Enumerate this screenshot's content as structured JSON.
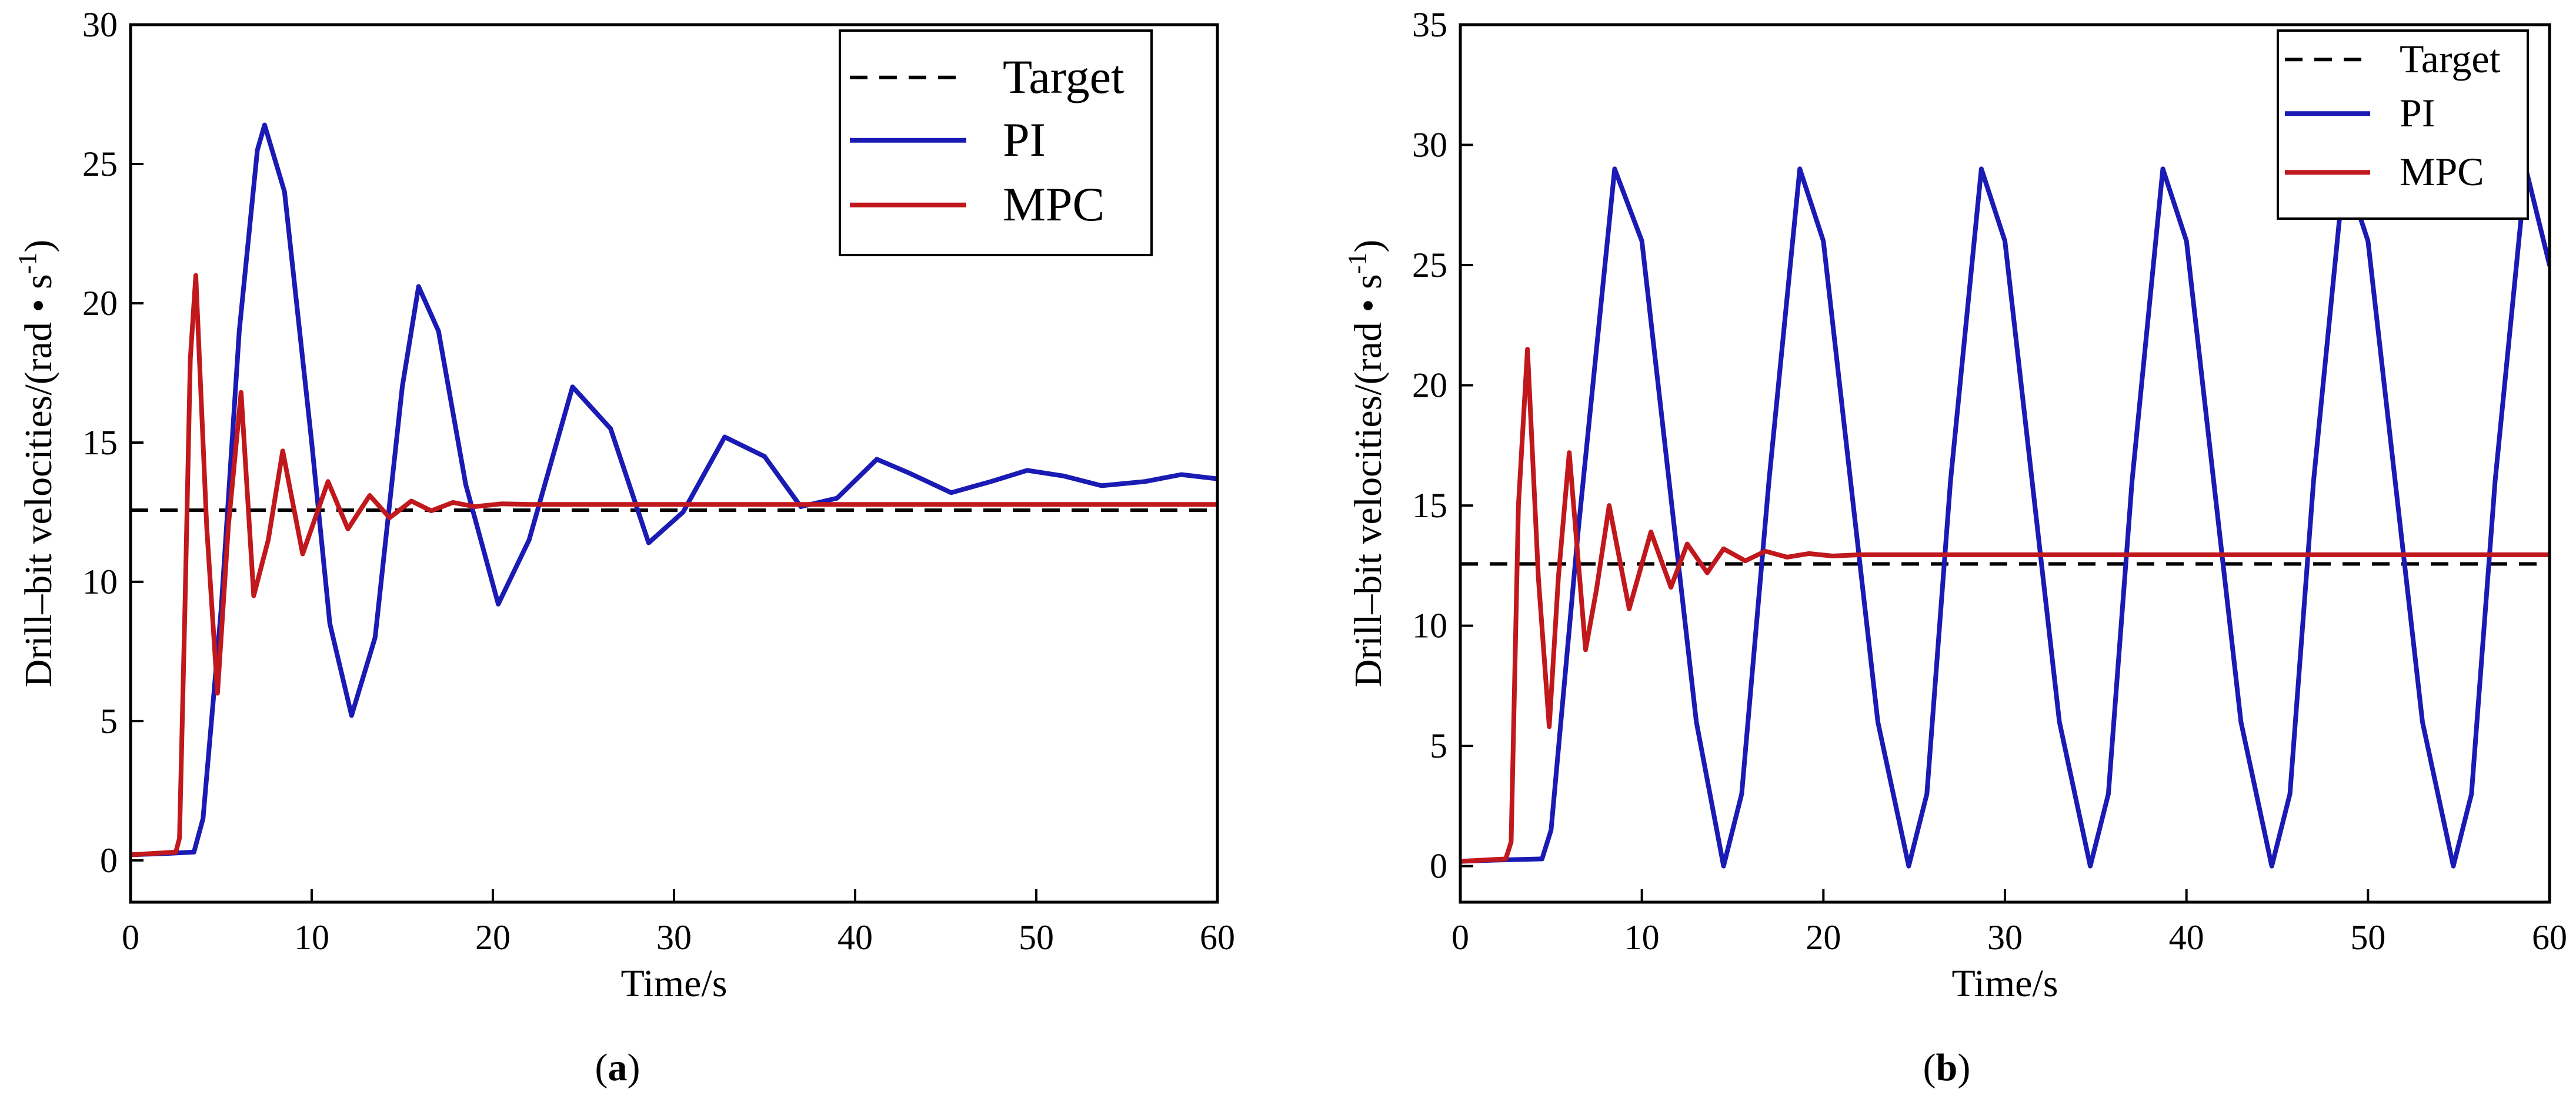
{
  "chart_data": [
    {
      "type": "line",
      "panel_label": "a",
      "xlabel": "Time/s",
      "ylabel_main": "Drill–bit velocities/(rad • s",
      "ylabel_sup": "-1",
      "ylabel_close": ")",
      "xlim": [
        0,
        60
      ],
      "ylim": [
        -1.5,
        30
      ],
      "xticks": [
        0,
        10,
        20,
        30,
        40,
        50,
        60
      ],
      "yticks": [
        0,
        5,
        10,
        15,
        20,
        25,
        30
      ],
      "legend_position": "top-right",
      "series": [
        {
          "name": "Target",
          "style": "dashed",
          "color": "#000000",
          "x": [
            0,
            60
          ],
          "y": [
            12.57,
            12.57
          ]
        },
        {
          "name": "PI",
          "style": "solid",
          "color": "#1a1ab4",
          "x": [
            0,
            2,
            3.5,
            4.0,
            5.0,
            6.0,
            7.0,
            7.4,
            8.5,
            10.0,
            11.0,
            12.2,
            13.5,
            15.0,
            15.9,
            17.0,
            18.5,
            20.3,
            22.0,
            24.4,
            26.5,
            28.6,
            30.5,
            32.8,
            35.0,
            37.0,
            39.0,
            41.2,
            43.0,
            45.3,
            47.5,
            49.5,
            51.5,
            53.6,
            56.0,
            58.0,
            60.0
          ],
          "y": [
            0.2,
            0.25,
            0.3,
            1.5,
            9.0,
            19.0,
            25.5,
            26.4,
            24.0,
            15.0,
            8.5,
            5.2,
            8.0,
            17.0,
            20.6,
            19.0,
            13.5,
            9.2,
            11.5,
            17.0,
            15.5,
            11.4,
            12.5,
            15.2,
            14.5,
            12.7,
            13.0,
            14.4,
            13.9,
            13.2,
            13.6,
            14.0,
            13.8,
            13.45,
            13.6,
            13.85,
            13.7
          ]
        },
        {
          "name": "MPC",
          "style": "solid",
          "color": "#c0181c",
          "x": [
            0,
            2.5,
            2.7,
            3.0,
            3.3,
            3.6,
            4.2,
            4.8,
            5.4,
            6.1,
            6.8,
            7.6,
            8.4,
            9.5,
            10.9,
            12.0,
            13.2,
            14.3,
            15.5,
            16.6,
            17.8,
            19.0,
            20.5,
            22.0,
            60
          ],
          "y": [
            0.2,
            0.3,
            0.8,
            9.0,
            18.0,
            21.0,
            12.0,
            6.0,
            12.0,
            16.8,
            9.5,
            11.5,
            14.7,
            11.0,
            13.6,
            11.9,
            13.1,
            12.3,
            12.9,
            12.55,
            12.85,
            12.7,
            12.8,
            12.78,
            12.78
          ]
        }
      ]
    },
    {
      "type": "line",
      "panel_label": "b",
      "xlabel": "Time/s",
      "ylabel_main": "Drill–bit velocities/(rad • s",
      "ylabel_sup": "-1",
      "ylabel_close": ")",
      "xlim": [
        0,
        60
      ],
      "ylim": [
        -1.5,
        35
      ],
      "xticks": [
        0,
        10,
        20,
        30,
        40,
        50,
        60
      ],
      "yticks": [
        0,
        5,
        10,
        15,
        20,
        25,
        30,
        35
      ],
      "legend_position": "top-right",
      "series": [
        {
          "name": "Target",
          "style": "dashed",
          "color": "#000000",
          "x": [
            0,
            60
          ],
          "y": [
            12.57,
            12.57
          ]
        },
        {
          "name": "PI",
          "style": "solid",
          "color": "#1a1ab4",
          "x": [
            0,
            2,
            4.5,
            5.0,
            6.5,
            8.5,
            10.0,
            11.5,
            13.0,
            14.5,
            15.5,
            17.0,
            18.7,
            20.0,
            21.5,
            23.0,
            24.7,
            25.7,
            27.0,
            28.7,
            30.0,
            31.5,
            33.0,
            34.7,
            35.7,
            37.0,
            38.7,
            40.0,
            41.5,
            43.0,
            44.7,
            45.7,
            47.0,
            48.7,
            50.0,
            51.5,
            53.0,
            54.7,
            55.7,
            57.0,
            58.7,
            60.0
          ],
          "y": [
            0.2,
            0.25,
            0.3,
            1.5,
            14.0,
            29.0,
            26.0,
            16.0,
            6.0,
            0.0,
            3.0,
            16.0,
            29.0,
            26.0,
            16.0,
            6.0,
            0.0,
            3.0,
            16.0,
            29.0,
            26.0,
            16.0,
            6.0,
            0.0,
            3.0,
            16.0,
            29.0,
            26.0,
            16.0,
            6.0,
            0.0,
            3.0,
            16.0,
            29.0,
            26.0,
            16.0,
            6.0,
            0.0,
            3.0,
            16.0,
            29.0,
            25.0
          ]
        },
        {
          "name": "MPC",
          "style": "solid",
          "color": "#c0181c",
          "x": [
            0,
            2.5,
            2.8,
            3.2,
            3.7,
            4.3,
            4.9,
            5.4,
            6.0,
            6.9,
            7.5,
            8.2,
            9.3,
            10.5,
            11.6,
            12.5,
            13.6,
            14.5,
            15.7,
            16.8,
            18.0,
            19.2,
            20.5,
            22.0,
            60
          ],
          "y": [
            0.2,
            0.3,
            1.0,
            15.0,
            21.5,
            12.0,
            5.8,
            12.0,
            17.2,
            9.0,
            11.5,
            15.0,
            10.7,
            13.9,
            11.6,
            13.4,
            12.2,
            13.2,
            12.7,
            13.1,
            12.85,
            13.0,
            12.9,
            12.95,
            12.95
          ]
        }
      ]
    }
  ]
}
